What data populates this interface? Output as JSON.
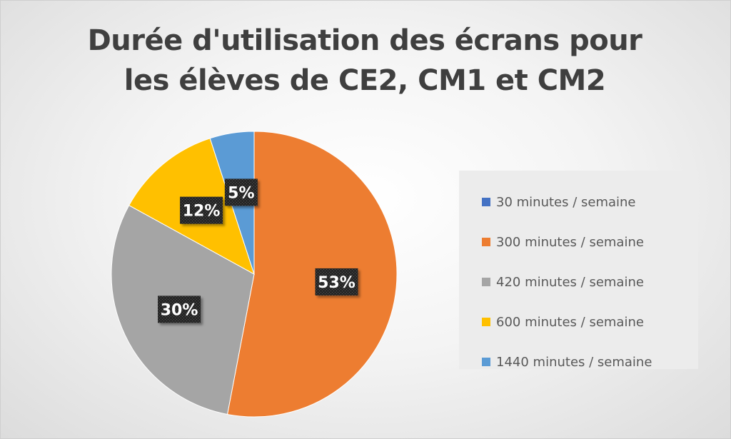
{
  "chart_data": {
    "type": "pie",
    "title_lines": [
      "Durée d'utilisation des écrans pour",
      "les élèves de CE2, CM1 et CM2"
    ],
    "categories": [
      "30 minutes / semaine",
      "300 minutes / semaine",
      "420 minutes / semaine",
      "600 minutes / semaine",
      "1440 minutes / semaine"
    ],
    "values": [
      0,
      53,
      30,
      12,
      5
    ],
    "data_labels": [
      "",
      "53%",
      "30%",
      "12%",
      "5%"
    ],
    "colors": [
      "#4472C4",
      "#ED7D31",
      "#A5A5A5",
      "#FFC000",
      "#5B9BD5"
    ],
    "legend_position": "right"
  }
}
